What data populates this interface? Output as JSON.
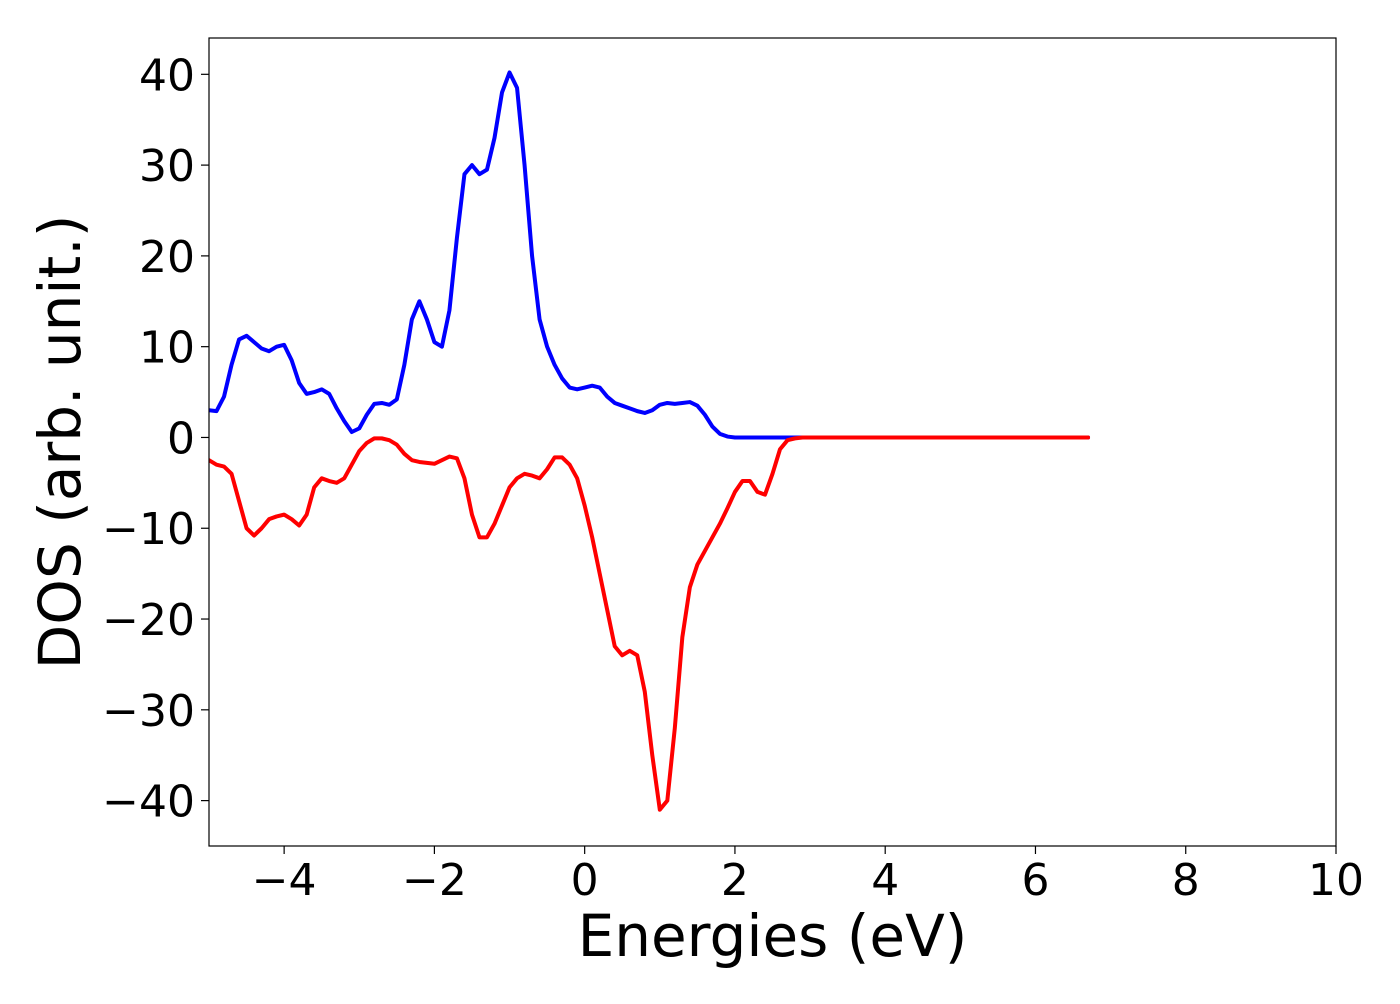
{
  "chart_data": {
    "type": "line",
    "title": "",
    "xlabel": "Energies (eV)",
    "ylabel": "DOS (arb. unit.)",
    "xlim": [
      -5,
      10
    ],
    "ylim": [
      -45,
      44
    ],
    "grid": false,
    "legend": "none",
    "x_ticks": [
      -4,
      -2,
      0,
      2,
      4,
      6,
      8,
      10
    ],
    "x_tick_labels": [
      "−4",
      "−2",
      "0",
      "2",
      "4",
      "6",
      "8",
      "10"
    ],
    "y_ticks": [
      40,
      30,
      20,
      10,
      0,
      -10,
      -20,
      -30,
      -40
    ],
    "y_tick_labels": [
      "40",
      "30",
      "20",
      "10",
      "0",
      "−10",
      "−20",
      "−30",
      "−40"
    ],
    "series": [
      {
        "color": "#0000ff",
        "x": [
          -5.0,
          -4.9,
          -4.8,
          -4.7,
          -4.6,
          -4.5,
          -4.4,
          -4.3,
          -4.2,
          -4.1,
          -4.0,
          -3.9,
          -3.8,
          -3.7,
          -3.6,
          -3.5,
          -3.4,
          -3.3,
          -3.2,
          -3.1,
          -3.0,
          -2.9,
          -2.8,
          -2.7,
          -2.6,
          -2.5,
          -2.4,
          -2.3,
          -2.2,
          -2.1,
          -2.0,
          -1.9,
          -1.8,
          -1.7,
          -1.6,
          -1.5,
          -1.4,
          -1.3,
          -1.2,
          -1.1,
          -1.0,
          -0.9,
          -0.8,
          -0.7,
          -0.6,
          -0.5,
          -0.4,
          -0.3,
          -0.2,
          -0.1,
          0.0,
          0.1,
          0.2,
          0.3,
          0.4,
          0.5,
          0.6,
          0.7,
          0.8,
          0.9,
          1.0,
          1.1,
          1.2,
          1.3,
          1.4,
          1.5,
          1.6,
          1.7,
          1.8,
          1.9,
          2.0,
          2.1,
          2.2,
          2.3,
          2.4,
          2.5,
          2.6,
          2.7,
          2.8,
          2.9,
          3.0,
          3.1,
          3.2,
          3.4,
          3.6,
          3.8,
          4.0,
          4.5,
          5.0,
          5.5,
          6.0,
          6.7
        ],
        "y": [
          3.0,
          2.9,
          4.5,
          8.0,
          10.8,
          11.2,
          10.5,
          9.8,
          9.5,
          10.0,
          10.2,
          8.5,
          6.0,
          4.8,
          5.0,
          5.3,
          4.8,
          3.2,
          1.8,
          0.6,
          1.0,
          2.5,
          3.7,
          3.8,
          3.6,
          4.2,
          8.0,
          13.0,
          15.0,
          13.0,
          10.5,
          10.0,
          14.0,
          22.0,
          29.0,
          30.0,
          29.0,
          29.5,
          33.0,
          38.0,
          40.2,
          38.5,
          30.0,
          20.0,
          13.0,
          10.0,
          8.0,
          6.5,
          5.5,
          5.3,
          5.5,
          5.7,
          5.5,
          4.5,
          3.8,
          3.5,
          3.2,
          2.9,
          2.7,
          3.0,
          3.6,
          3.8,
          3.7,
          3.8,
          3.9,
          3.5,
          2.5,
          1.2,
          0.4,
          0.1,
          0.0,
          0.0,
          0.0,
          0.0,
          0.0,
          0.0,
          0.0,
          0.0,
          0.0,
          0.0,
          0.0,
          0.0,
          0.0,
          0.0,
          0.0,
          0.0,
          0.0,
          0.0,
          0.0,
          0.0,
          0.0,
          0.0
        ]
      },
      {
        "color": "#ff0000",
        "x": [
          -5.0,
          -4.9,
          -4.8,
          -4.7,
          -4.6,
          -4.5,
          -4.4,
          -4.3,
          -4.2,
          -4.1,
          -4.0,
          -3.9,
          -3.8,
          -3.7,
          -3.6,
          -3.5,
          -3.4,
          -3.3,
          -3.2,
          -3.1,
          -3.0,
          -2.9,
          -2.8,
          -2.7,
          -2.6,
          -2.5,
          -2.4,
          -2.3,
          -2.2,
          -2.1,
          -2.0,
          -1.9,
          -1.8,
          -1.7,
          -1.6,
          -1.5,
          -1.4,
          -1.3,
          -1.2,
          -1.1,
          -1.0,
          -0.9,
          -0.8,
          -0.7,
          -0.6,
          -0.5,
          -0.4,
          -0.3,
          -0.2,
          -0.1,
          0.0,
          0.1,
          0.2,
          0.3,
          0.4,
          0.5,
          0.6,
          0.7,
          0.8,
          0.9,
          1.0,
          1.1,
          1.2,
          1.3,
          1.4,
          1.5,
          1.6,
          1.7,
          1.8,
          1.9,
          2.0,
          2.1,
          2.2,
          2.3,
          2.4,
          2.5,
          2.6,
          2.7,
          2.8,
          2.9,
          3.0,
          3.1,
          3.2,
          3.3,
          3.4,
          3.5,
          3.6,
          3.7,
          3.8,
          3.9,
          4.0,
          4.1,
          4.2,
          4.3,
          4.4,
          4.5,
          5.0,
          5.5,
          6.0,
          6.7
        ],
        "y": [
          -2.5,
          -3.0,
          -3.2,
          -4.0,
          -7.0,
          -10.0,
          -10.8,
          -10.0,
          -9.0,
          -8.7,
          -8.5,
          -9.0,
          -9.7,
          -8.5,
          -5.5,
          -4.5,
          -4.8,
          -5.0,
          -4.5,
          -3.0,
          -1.5,
          -0.6,
          -0.1,
          -0.1,
          -0.3,
          -0.8,
          -1.8,
          -2.5,
          -2.7,
          -2.8,
          -2.9,
          -2.5,
          -2.1,
          -2.3,
          -4.5,
          -8.5,
          -11.0,
          -11.0,
          -9.5,
          -7.5,
          -5.5,
          -4.5,
          -4.0,
          -4.2,
          -4.5,
          -3.5,
          -2.2,
          -2.2,
          -3.0,
          -4.5,
          -7.5,
          -11.0,
          -15.0,
          -19.0,
          -23.0,
          -24.0,
          -23.5,
          -24.0,
          -28.0,
          -35.0,
          -41.0,
          -40.0,
          -32.0,
          -22.0,
          -16.5,
          -14.0,
          -12.5,
          -11.0,
          -9.5,
          -7.8,
          -6.0,
          -4.8,
          -4.8,
          -6.0,
          -6.3,
          -4.0,
          -1.3,
          -0.3,
          -0.1,
          0.0,
          0.0,
          0.0,
          0.0,
          0.0,
          0.0,
          0.0,
          0.0,
          0.0,
          0.0,
          0.0,
          0.0,
          0.0,
          0.0,
          0.0,
          0.0,
          0.0,
          0.0,
          0.0,
          0.0,
          0.0
        ]
      }
    ]
  }
}
